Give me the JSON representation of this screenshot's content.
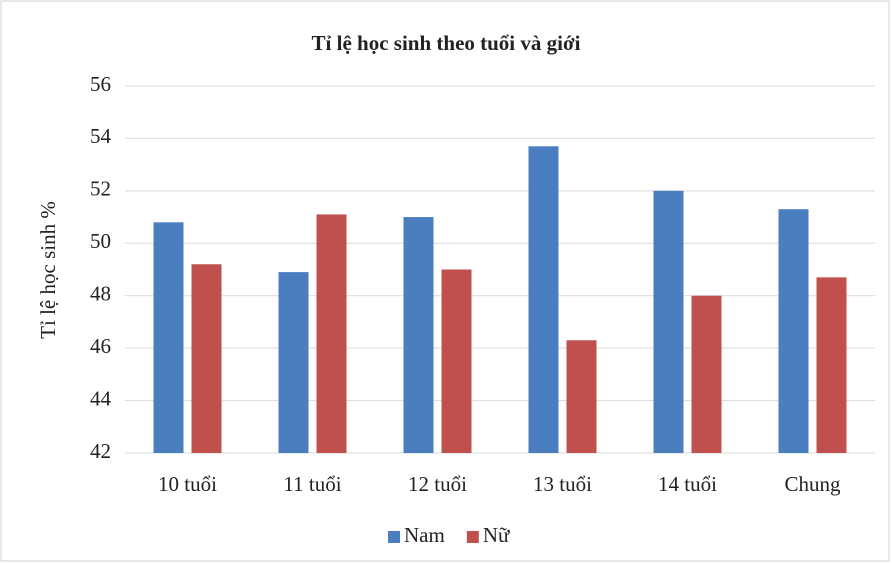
{
  "chart_data": {
    "type": "bar",
    "title": "Tỉ lệ học sinh theo tuổi và giới",
    "y_label": "Tỉ lệ học sinh %",
    "categories": [
      "10 tuổi",
      "11 tuổi",
      "12 tuổi",
      "13 tuổi",
      "14 tuổi",
      "Chung"
    ],
    "series": [
      {
        "name": "Nam",
        "color": "#4a7ebf",
        "values": [
          50.8,
          48.9,
          51.0,
          53.7,
          52.0,
          51.3
        ]
      },
      {
        "name": "Nữ",
        "color": "#c0504d",
        "values": [
          49.2,
          51.1,
          49.0,
          46.3,
          48.0,
          48.7
        ]
      }
    ],
    "ylim": [
      42,
      56
    ],
    "yticks": [
      42,
      44,
      46,
      48,
      50,
      52,
      54,
      56
    ],
    "grid": true,
    "legend": "bottom"
  }
}
